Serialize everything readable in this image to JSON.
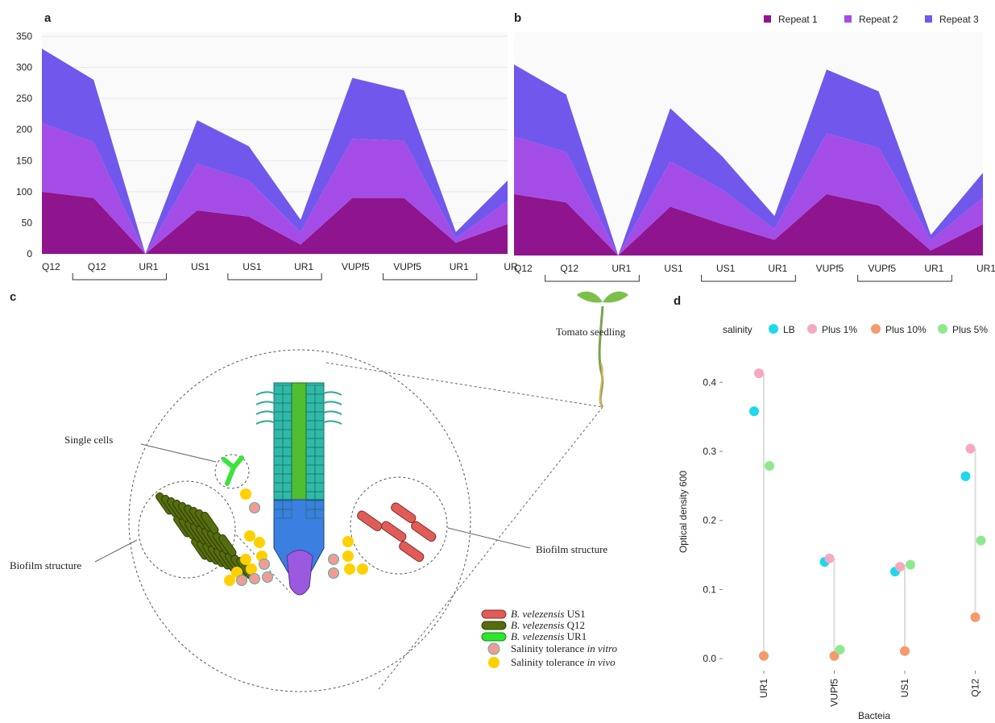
{
  "panel_labels": [
    "a",
    "b",
    "c",
    "d"
  ],
  "chart_data": [
    {
      "type": "area",
      "stacked": true,
      "categories": [
        "Q12",
        "Q12",
        "UR1",
        "US1",
        "US1",
        "UR1",
        "VUPf5",
        "VUPf5",
        "UR1",
        "UR"
      ],
      "ylim": [
        0,
        350
      ],
      "yticks": [
        0,
        50,
        100,
        150,
        200,
        250,
        300,
        350
      ],
      "grid": true,
      "series": [
        {
          "color": "#8e158e",
          "values": [
            100,
            90,
            0,
            70,
            60,
            15,
            90,
            90,
            18,
            48
          ]
        },
        {
          "color": "#a44de6",
          "values": [
            110,
            90,
            0,
            75,
            58,
            20,
            95,
            92,
            7,
            37
          ]
        },
        {
          "color": "#7257ed",
          "values": [
            120,
            100,
            0,
            70,
            55,
            20,
            98,
            81,
            10,
            33
          ]
        }
      ]
    },
    {
      "type": "area",
      "stacked": true,
      "categories": [
        "Q12",
        "Q12",
        "UR1",
        "US1",
        "US1",
        "UR1",
        "VUPf5",
        "VUPf5",
        "UR1",
        "UR1"
      ],
      "ylim": [
        0,
        350
      ],
      "legend": "top-right",
      "series": [
        {
          "name": "Repeat 1",
          "color": "#8e158e",
          "values": [
            98,
            85,
            0,
            78,
            50,
            25,
            98,
            80,
            8,
            50
          ]
        },
        {
          "name": "Repeat 2",
          "color": "#a44de6",
          "values": [
            92,
            80,
            0,
            72,
            55,
            17,
            97,
            92,
            17,
            42
          ]
        },
        {
          "name": "Repeat 3",
          "color": "#7257ed",
          "values": [
            115,
            92,
            0,
            85,
            53,
            21,
            102,
            90,
            8,
            40
          ]
        }
      ]
    },
    {
      "type": "dot",
      "categories": [
        "UR1",
        "VUPf5",
        "US1",
        "Q12"
      ],
      "x_label": "Bacteia",
      "y_label": "Optical density 600",
      "legend_title": "salinity",
      "legend": "top",
      "ylim": [
        -0.015,
        0.44
      ],
      "yticks": [
        {
          "value": 0,
          "label": "0.0"
        },
        0.1,
        0.2,
        0.3,
        0.4
      ],
      "series": [
        {
          "name": "LB",
          "color": "#1ed8ec",
          "values": [
            0.358,
            0.14,
            0.126,
            0.264
          ]
        },
        {
          "name": "Plus 1%",
          "color": "#f5a9c0",
          "values": [
            0.413,
            0.145,
            0.133,
            0.304
          ]
        },
        {
          "name": "Plus 10%",
          "color": "#f59a6c",
          "values": [
            0.004,
            0.004,
            0.011,
            0.06
          ]
        },
        {
          "name": "Plus 5%",
          "color": "#8fe88f",
          "values": [
            0.279,
            0.013,
            0.136,
            0.171
          ]
        }
      ]
    }
  ],
  "diagram": {
    "seedling_label": "Tomato seedling",
    "single_cells_label": "Single cells",
    "biofilm_labels": [
      "Biofilm structure",
      "Biofilm structure"
    ],
    "legend": [
      {
        "species": "B. velezensis",
        "strain": "US1"
      },
      {
        "species": "B. velezensis",
        "strain": "Q12"
      },
      {
        "species": "B. velezensis",
        "strain": "UR1"
      },
      {
        "text": "Salinity tolerance",
        "qualifier": "in vitro"
      },
      {
        "text": "Salinity tolerance",
        "qualifier": "in vivo"
      }
    ]
  }
}
